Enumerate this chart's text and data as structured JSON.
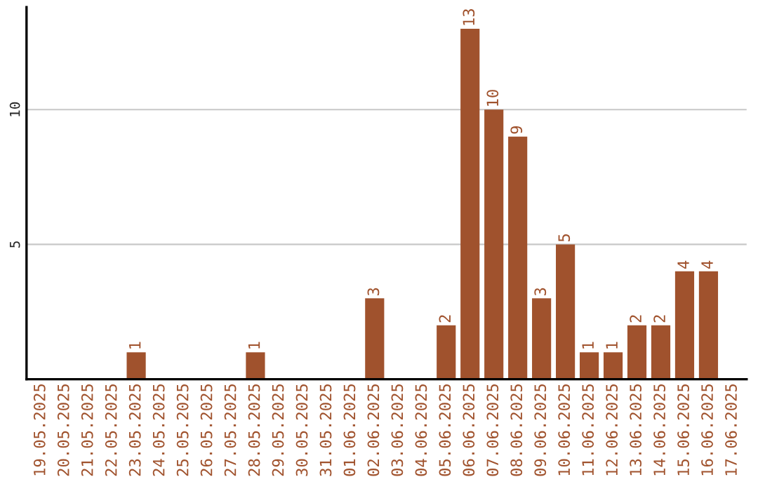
{
  "chart_data": {
    "type": "bar",
    "categories": [
      "19.05.2025",
      "20.05.2025",
      "21.05.2025",
      "22.05.2025",
      "23.05.2025",
      "24.05.2025",
      "25.05.2025",
      "26.05.2025",
      "27.05.2025",
      "28.05.2025",
      "29.05.2025",
      "30.05.2025",
      "31.05.2025",
      "01.06.2025",
      "02.06.2025",
      "03.06.2025",
      "04.06.2025",
      "05.06.2025",
      "06.06.2025",
      "07.06.2025",
      "08.06.2025",
      "09.06.2025",
      "10.06.2025",
      "11.06.2025",
      "12.06.2025",
      "13.06.2025",
      "14.06.2025",
      "15.06.2025",
      "16.06.2025",
      "17.06.2025"
    ],
    "values": [
      0,
      0,
      0,
      0,
      1,
      0,
      0,
      0,
      0,
      1,
      0,
      0,
      0,
      0,
      3,
      0,
      0,
      2,
      13,
      10,
      9,
      3,
      5,
      1,
      1,
      2,
      2,
      4,
      4,
      0
    ],
    "value_labels": [
      null,
      null,
      null,
      null,
      "1",
      null,
      null,
      null,
      null,
      "1",
      null,
      null,
      null,
      null,
      "3",
      null,
      null,
      "2",
      "13",
      "10",
      "9",
      "3",
      "5",
      "1",
      "1",
      "2",
      "2",
      "4",
      "4",
      null
    ],
    "color": "#a0522d",
    "ylim": [
      0,
      13.8
    ],
    "yticks": [
      5,
      10
    ],
    "grid": "y"
  }
}
